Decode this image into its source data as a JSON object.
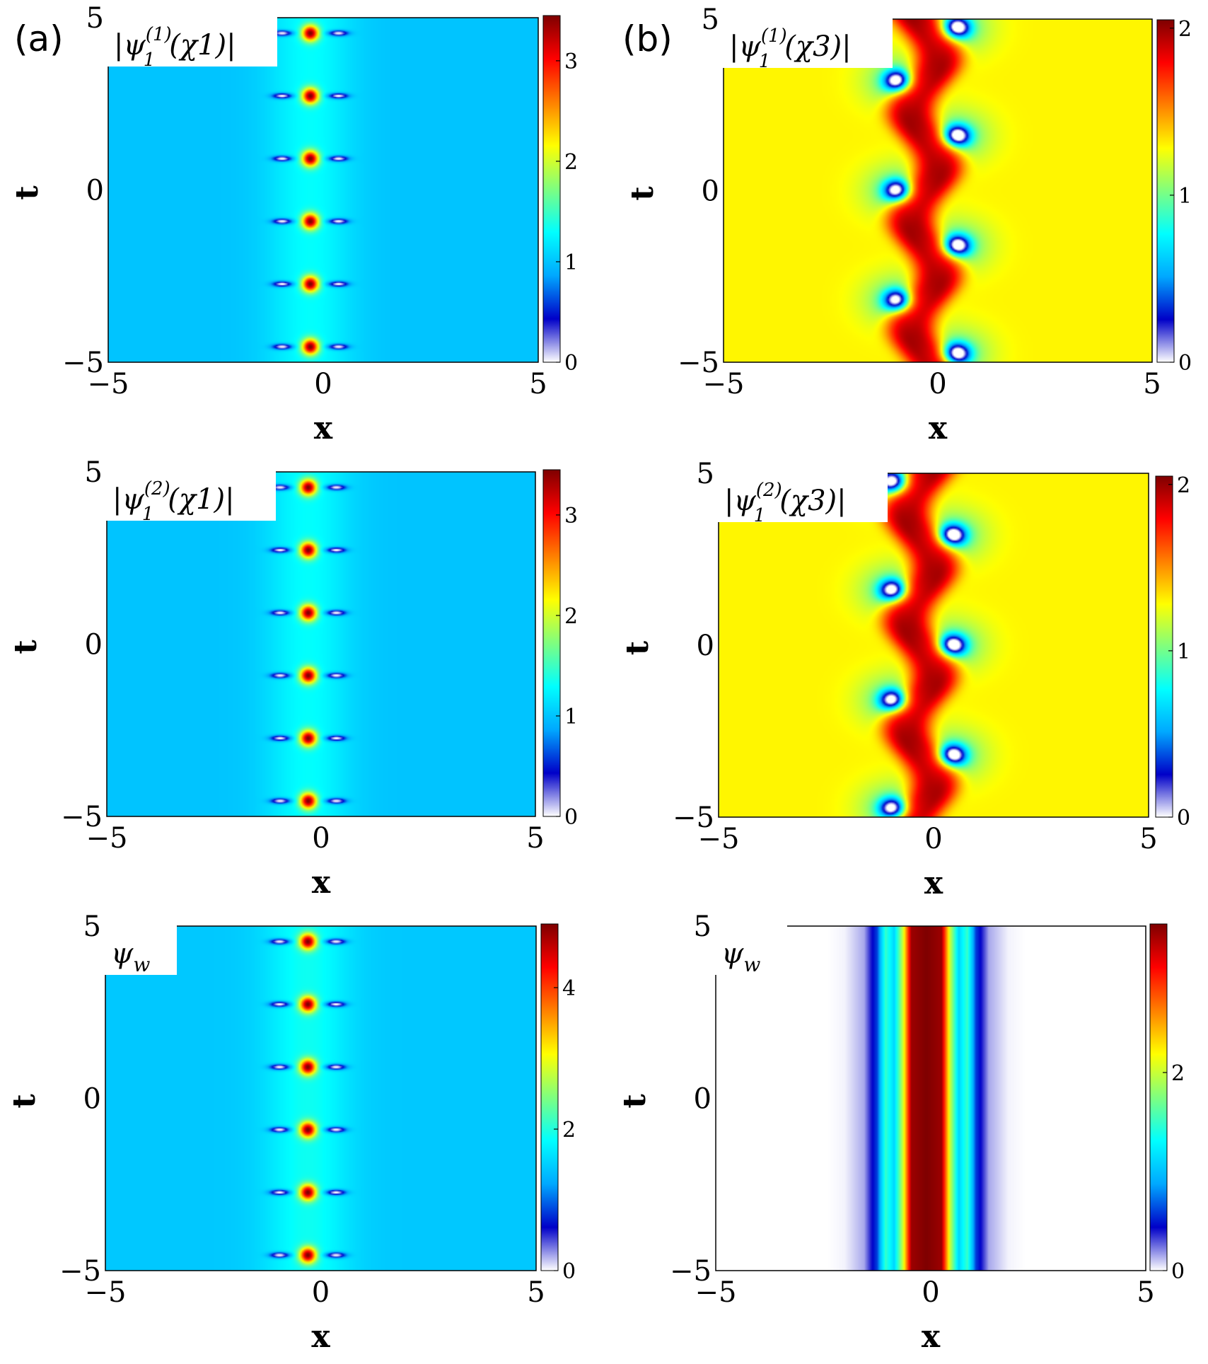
{
  "column_labels": [
    "(a)",
    "(b)"
  ],
  "colormap": [
    "#ffffff",
    "#0000c8",
    "#00a8ff",
    "#00ffff",
    "#7fff7f",
    "#ffff00",
    "#ff8000",
    "#ff0000",
    "#7f0000"
  ],
  "chart_data": [
    {
      "type": "heatmap",
      "column": "(a)",
      "title": "|ψ1(1)(χ1)|",
      "title_parts": {
        "base": "|ψ",
        "sub": "1",
        "sup": "(1)",
        "tail": "(χ1)|"
      },
      "xlabel": "x",
      "ylabel": "t",
      "xlim": [
        -5,
        5
      ],
      "ylim": [
        -5,
        5
      ],
      "xticks": [
        -5,
        0,
        5
      ],
      "yticks": [
        -5,
        0,
        5
      ],
      "xtick_labels": [
        "−5",
        "0",
        "5"
      ],
      "ytick_labels": [
        "−5",
        "0",
        "5"
      ],
      "colorbar": {
        "range": [
          0,
          3.45
        ],
        "ticks": [
          0,
          1,
          2,
          3
        ],
        "tick_labels": [
          "0",
          "1",
          "2",
          "3"
        ]
      },
      "background_value": 1.0,
      "pattern": "periodic_peaks",
      "peak_x": -0.3,
      "peak_t": [
        4.55,
        2.73,
        0.91,
        -0.91,
        -2.73,
        -4.55
      ],
      "peak_value": 3.45,
      "hole_offset": 0.65,
      "side_value": 1.3
    },
    {
      "type": "heatmap",
      "column": "(b)",
      "title": "|ψ1(1)(χ3)|",
      "title_parts": {
        "base": "|ψ",
        "sub": "1",
        "sup": "(1)",
        "tail": "(χ3)|"
      },
      "xlabel": "x",
      "ylabel": "t",
      "xlim": [
        -5,
        5
      ],
      "ylim": [
        -5,
        5
      ],
      "xticks": [
        -5,
        0,
        5
      ],
      "yticks": [
        -5,
        0,
        5
      ],
      "xtick_labels": [
        "−5",
        "0",
        "5"
      ],
      "ytick_labels": [
        "−5",
        "0",
        "5"
      ],
      "colorbar": {
        "range": [
          0,
          2.05
        ],
        "ticks": [
          0,
          1,
          2
        ],
        "tick_labels": [
          "0",
          "1",
          "2"
        ]
      },
      "background_value": 1.3,
      "pattern": "wavy_stripe",
      "stripe_x": -0.3,
      "stripe_amplitude": 0.32,
      "stripe_period": 3.15,
      "stripe_phase": 0.0,
      "stripe_value": 2.05,
      "holes": [
        [
          0.45,
          4.75
        ],
        [
          -0.95,
          3.2
        ],
        [
          0.45,
          1.6
        ],
        [
          -0.95,
          0.0
        ],
        [
          0.45,
          -1.6
        ],
        [
          -0.95,
          -3.2
        ],
        [
          0.45,
          -4.75
        ]
      ]
    },
    {
      "type": "heatmap",
      "column": "(a)",
      "title": "|ψ1(2)(χ1)|",
      "title_parts": {
        "base": "|ψ",
        "sub": "1",
        "sup": "(2)",
        "tail": "(χ1)|"
      },
      "xlabel": "x",
      "ylabel": "t",
      "xlim": [
        -5,
        5
      ],
      "ylim": [
        -5,
        5
      ],
      "xticks": [
        -5,
        0,
        5
      ],
      "yticks": [
        -5,
        0,
        5
      ],
      "xtick_labels": [
        "−5",
        "0",
        "5"
      ],
      "ytick_labels": [
        "−5",
        "0",
        "5"
      ],
      "colorbar": {
        "range": [
          0,
          3.45
        ],
        "ticks": [
          0,
          1,
          2,
          3
        ],
        "tick_labels": [
          "0",
          "1",
          "2",
          "3"
        ]
      },
      "background_value": 1.0,
      "pattern": "periodic_peaks",
      "peak_x": -0.3,
      "peak_t": [
        4.55,
        2.73,
        0.91,
        -0.91,
        -2.73,
        -4.55
      ],
      "peak_value": 3.45,
      "hole_offset": 0.65,
      "side_value": 1.3
    },
    {
      "type": "heatmap",
      "column": "(b)",
      "title": "|ψ1(2)(χ3)|",
      "title_parts": {
        "base": "|ψ",
        "sub": "1",
        "sup": "(2)",
        "tail": "(χ3)|"
      },
      "xlabel": "x",
      "ylabel": "t",
      "xlim": [
        -5,
        5
      ],
      "ylim": [
        -5,
        5
      ],
      "xticks": [
        -5,
        0,
        5
      ],
      "yticks": [
        -5,
        0,
        5
      ],
      "xtick_labels": [
        "−5",
        "0",
        "5"
      ],
      "ytick_labels": [
        "−5",
        "0",
        "5"
      ],
      "colorbar": {
        "range": [
          0,
          2.05
        ],
        "ticks": [
          0,
          1,
          2
        ],
        "tick_labels": [
          "0",
          "1",
          "2"
        ]
      },
      "background_value": 1.3,
      "pattern": "wavy_stripe",
      "stripe_x": -0.3,
      "stripe_amplitude": 0.32,
      "stripe_period": 3.15,
      "stripe_phase": 3.14159,
      "stripe_value": 2.05,
      "holes": [
        [
          -0.95,
          4.75
        ],
        [
          0.45,
          3.2
        ],
        [
          -0.95,
          1.6
        ],
        [
          0.45,
          0.0
        ],
        [
          -0.95,
          -1.6
        ],
        [
          0.45,
          -3.2
        ],
        [
          -0.95,
          -4.75
        ]
      ]
    },
    {
      "type": "heatmap",
      "column": "(a)",
      "title": "ψw",
      "title_parts": {
        "base": "ψ",
        "sub": "w",
        "sup": "",
        "tail": ""
      },
      "xlabel": "x",
      "ylabel": "t",
      "xlim": [
        -5,
        5
      ],
      "ylim": [
        -5,
        5
      ],
      "xticks": [
        -5,
        0,
        5
      ],
      "yticks": [
        -5,
        0,
        5
      ],
      "xtick_labels": [
        "−5",
        "0",
        "5"
      ],
      "ytick_labels": [
        "−5",
        "0",
        "5"
      ],
      "colorbar": {
        "range": [
          0,
          4.9
        ],
        "ticks": [
          0,
          2,
          4
        ],
        "tick_labels": [
          "0",
          "2",
          "4"
        ]
      },
      "background_value": 1.45,
      "pattern": "periodic_peaks",
      "peak_x": -0.3,
      "peak_t": [
        4.55,
        2.73,
        0.91,
        -0.91,
        -2.73,
        -4.55
      ],
      "peak_value": 4.9,
      "hole_offset": 0.65,
      "side_value": 1.9
    },
    {
      "type": "heatmap",
      "column": "(b)",
      "title": "ψw",
      "title_parts": {
        "base": "ψ",
        "sub": "w",
        "sup": "",
        "tail": ""
      },
      "xlabel": "x",
      "ylabel": "t",
      "xlim": [
        -5,
        5
      ],
      "ylim": [
        -5,
        5
      ],
      "xticks": [
        -5,
        0,
        5
      ],
      "yticks": [
        -5,
        0,
        5
      ],
      "xtick_labels": [
        "−5",
        "0",
        "5"
      ],
      "ytick_labels": [
        "−5",
        "0",
        "5"
      ],
      "colorbar": {
        "range": [
          0,
          3.5
        ],
        "ticks": [
          0,
          2
        ],
        "tick_labels": [
          "0",
          "2"
        ]
      },
      "background_value": 0.0,
      "pattern": "vertical_bands",
      "band_center": -0.1,
      "band_profile": [
        [
          0.0,
          3.5
        ],
        [
          0.35,
          3.4
        ],
        [
          0.55,
          2.0
        ],
        [
          0.75,
          1.1
        ],
        [
          0.95,
          1.5
        ],
        [
          1.15,
          0.6
        ],
        [
          1.45,
          0.15
        ],
        [
          1.9,
          0.02
        ],
        [
          2.3,
          0.0
        ]
      ]
    }
  ]
}
